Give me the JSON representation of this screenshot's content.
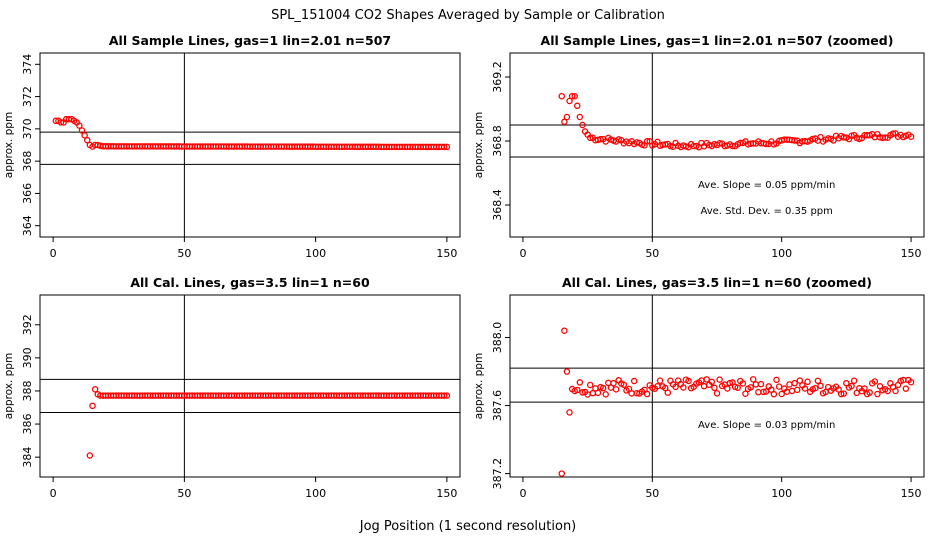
{
  "figure": {
    "title": "SPL_151004  CO2 Shapes Averaged by Sample or Calibration",
    "xlabel": "Jog Position (1 second resolution)",
    "colors": {
      "points": "#ff0000",
      "axes": "#000000",
      "background": "#ffffff"
    }
  },
  "chart_data": [
    {
      "type": "scatter",
      "title": "All Sample Lines, gas=1 lin=2.01 n=507",
      "ylabel": "approx. ppm",
      "xlim": [
        -5,
        155
      ],
      "ylim": [
        363.3,
        374.7
      ],
      "xticks": [
        0,
        50,
        100,
        150
      ],
      "yticks": [
        364,
        366,
        368,
        370,
        372,
        374
      ],
      "vline_x": 50,
      "hlines": [
        369.8,
        367.8
      ],
      "annotations": [],
      "marker": "open-circle",
      "color": "#ff0000",
      "segments": [
        {
          "x": [
            1,
            2,
            3,
            4,
            5,
            6,
            7,
            8,
            9,
            10,
            11,
            12,
            13,
            14,
            15,
            16,
            17,
            18
          ],
          "y": [
            370.5,
            370.5,
            370.4,
            370.4,
            370.6,
            370.6,
            370.6,
            370.5,
            370.4,
            370.2,
            369.9,
            369.6,
            369.3,
            369.0,
            368.9,
            369.0,
            369.0,
            368.95
          ]
        },
        {
          "x_start": 19,
          "x_end": 150,
          "y_start": 368.92,
          "y_end": 368.88
        }
      ]
    },
    {
      "type": "scatter",
      "title": "All Sample Lines, gas=1 lin=2.01 n=507 (zoomed)",
      "ylabel": "approx. ppm",
      "xlim": [
        -5,
        155
      ],
      "ylim": [
        368.2,
        369.35
      ],
      "xticks": [
        0,
        50,
        100,
        150
      ],
      "yticks": [
        368.4,
        368.8,
        369.2
      ],
      "vline_x": 50,
      "hlines": [
        368.9,
        368.7
      ],
      "annotations": [
        "Ave. Slope =  0.05  ppm/min",
        "Ave. Std. Dev. =  0.35  ppm"
      ],
      "marker": "open-circle",
      "color": "#ff0000",
      "points": {
        "x": [
          15,
          16,
          17,
          18,
          19,
          20,
          21,
          22,
          23,
          24,
          25
        ],
        "y": [
          369.08,
          368.92,
          368.95,
          369.05,
          369.08,
          369.08,
          369.02,
          368.95,
          368.9,
          368.86,
          368.84
        ]
      },
      "segments": [
        {
          "x_start": 26,
          "x_end": 150,
          "y_start": 368.8,
          "y_end": 368.8,
          "profile": [
            368.82,
            368.79,
            368.77,
            368.78,
            368.79,
            368.81,
            368.83,
            368.84
          ]
        }
      ]
    },
    {
      "type": "scatter",
      "title": "All Cal. Lines, gas=3.5 lin=1 n=60",
      "ylabel": "approx. ppm",
      "xlim": [
        -5,
        155
      ],
      "ylim": [
        382.8,
        393.8
      ],
      "xticks": [
        0,
        50,
        100,
        150
      ],
      "yticks": [
        384,
        386,
        388,
        390,
        392
      ],
      "vline_x": 50,
      "hlines": [
        388.7,
        386.7
      ],
      "annotations": [],
      "marker": "open-circle",
      "color": "#ff0000",
      "points": {
        "x": [
          14,
          15,
          16,
          17
        ],
        "y": [
          384.1,
          387.1,
          388.1,
          387.8
        ]
      },
      "segments": [
        {
          "x_start": 18,
          "x_end": 150,
          "y_start": 387.72,
          "y_end": 387.72
        }
      ]
    },
    {
      "type": "scatter",
      "title": "All Cal. Lines, gas=3.5 lin=1 n=60 (zoomed)",
      "ylabel": "approx. ppm",
      "xlim": [
        -5,
        155
      ],
      "ylim": [
        387.18,
        388.25
      ],
      "xticks": [
        0,
        50,
        100,
        150
      ],
      "yticks": [
        387.2,
        387.6,
        388.0
      ],
      "vline_x": 50,
      "hlines": [
        387.82,
        387.62
      ],
      "annotations": [
        "Ave. Slope =  0.03  ppm/min"
      ],
      "marker": "open-circle",
      "color": "#ff0000",
      "points": {
        "x": [
          15,
          16,
          17,
          18
        ],
        "y": [
          387.2,
          388.04,
          387.8,
          387.56
        ]
      },
      "segments": [
        {
          "x_start": 19,
          "x_end": 150,
          "y_start": 387.71,
          "y_end": 387.71,
          "noise": 0.045
        }
      ]
    }
  ]
}
